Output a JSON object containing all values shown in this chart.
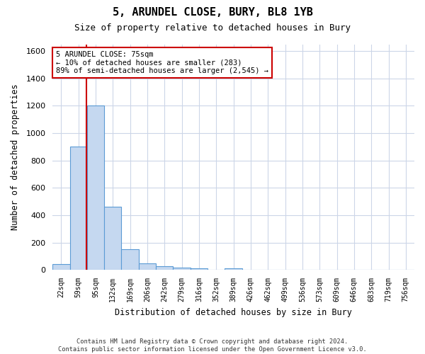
{
  "title_line1": "5, ARUNDEL CLOSE, BURY, BL8 1YB",
  "title_line2": "Size of property relative to detached houses in Bury",
  "xlabel": "Distribution of detached houses by size in Bury",
  "ylabel": "Number of detached properties",
  "footer": "Contains HM Land Registry data © Crown copyright and database right 2024.\nContains public sector information licensed under the Open Government Licence v3.0.",
  "bar_color": "#c5d8f0",
  "bar_edge_color": "#5b9bd5",
  "annotation_box_color": "#cc0000",
  "vline_color": "#cc0000",
  "categories": [
    "22sqm",
    "59sqm",
    "95sqm",
    "132sqm",
    "169sqm",
    "206sqm",
    "242sqm",
    "279sqm",
    "316sqm",
    "352sqm",
    "389sqm",
    "426sqm",
    "462sqm",
    "499sqm",
    "536sqm",
    "573sqm",
    "609sqm",
    "646sqm",
    "683sqm",
    "719sqm",
    "756sqm"
  ],
  "values": [
    40,
    900,
    1200,
    460,
    150,
    50,
    25,
    15,
    10,
    0,
    10,
    0,
    0,
    0,
    0,
    0,
    0,
    0,
    0,
    0,
    0
  ],
  "ylim": [
    0,
    1650
  ],
  "yticks": [
    0,
    200,
    400,
    600,
    800,
    1000,
    1200,
    1400,
    1600
  ],
  "vline_bin_index": 1,
  "annotation_text": "5 ARUNDEL CLOSE: 75sqm\n← 10% of detached houses are smaller (283)\n89% of semi-detached houses are larger (2,545) →",
  "bg_color": "#ffffff",
  "grid_color": "#ccd6e8"
}
